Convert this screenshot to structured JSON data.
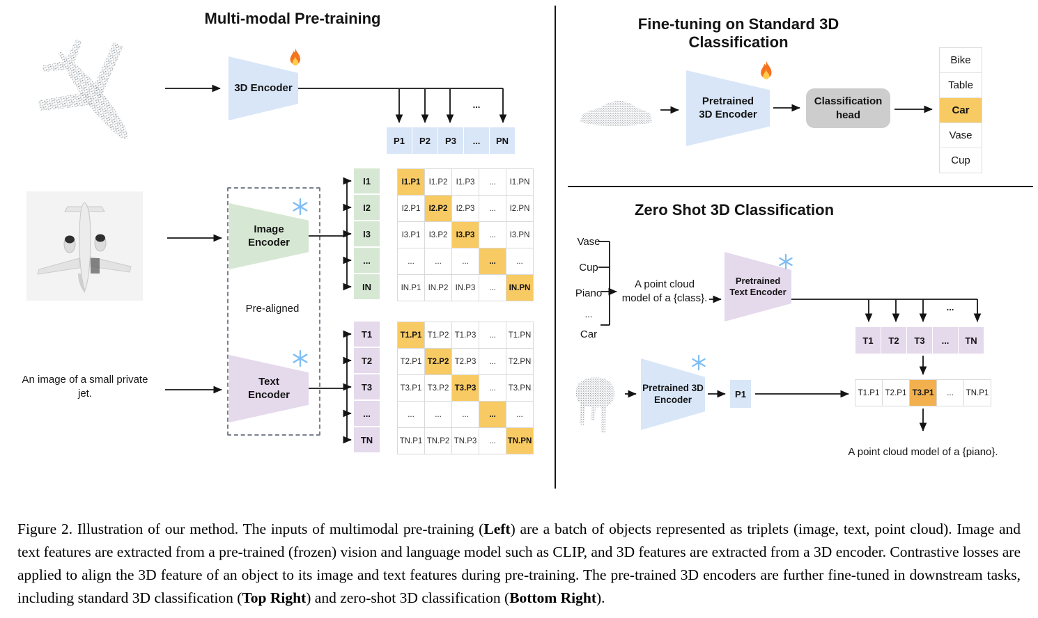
{
  "colors": {
    "blue": "#D8E6F8",
    "green": "#D6E8D3",
    "purple": "#E5D9EC",
    "yellow": "#F8CA63",
    "orange": "#F2B14E",
    "head": "#CDCDCD",
    "grid": "#D9D9D9"
  },
  "icons": {
    "trainable": "flame-icon",
    "frozen": "snowflake-icon"
  },
  "pretrain": {
    "title": "Multi-modal Pre-training",
    "encoder3d_label": "3D Encoder",
    "image_encoder_label": "Image Encoder",
    "text_encoder_label": "Text Encoder",
    "prealigned_label": "Pre-aligned",
    "input_text": "An image of a small private jet.",
    "p_dots": "...",
    "p_row": [
      "P1",
      "P2",
      "P3",
      "...",
      "PN"
    ],
    "i_labels": [
      "I1",
      "I2",
      "I3",
      "...",
      "IN"
    ],
    "t_labels": [
      "T1",
      "T2",
      "T3",
      "...",
      "TN"
    ],
    "i_matrix": [
      [
        "I1.P1",
        "I1.P2",
        "I1.P3",
        "...",
        "I1.PN"
      ],
      [
        "I2.P1",
        "I2.P2",
        "I2.P3",
        "...",
        "I2.PN"
      ],
      [
        "I3.P1",
        "I3.P2",
        "I3.P3",
        "...",
        "I3.PN"
      ],
      [
        "...",
        "...",
        "...",
        "...",
        "..."
      ],
      [
        "IN.P1",
        "IN.P2",
        "IN.P3",
        "...",
        "IN.PN"
      ]
    ],
    "t_matrix": [
      [
        "T1.P1",
        "T1.P2",
        "T1.P3",
        "...",
        "T1.PN"
      ],
      [
        "T2.P1",
        "T2.P2",
        "T2.P3",
        "...",
        "T2.PN"
      ],
      [
        "T3.P1",
        "T3.P2",
        "T3.P3",
        "...",
        "T3.PN"
      ],
      [
        "...",
        "...",
        "...",
        "...",
        "..."
      ],
      [
        "TN.P1",
        "TN.P2",
        "TN.P3",
        "...",
        "TN.PN"
      ]
    ]
  },
  "finetune": {
    "title": "Fine-tuning on Standard 3D Classification",
    "encoder_label": "Pretrained 3D Encoder",
    "head_label": "Classification head",
    "classes": [
      "Bike",
      "Table",
      "Car",
      "Vase",
      "Cup"
    ],
    "highlighted_class": "Car"
  },
  "zeroshot": {
    "title": "Zero Shot 3D Classification",
    "class_words": [
      "Vase",
      "Cup",
      "Piano",
      "...",
      "Car"
    ],
    "prompt_text": "A point cloud model of a {class}.",
    "text_encoder_label": "Pretrained Text Encoder",
    "encoder3d_label": "Pretrained 3D Encoder",
    "t_dots": "...",
    "t_row": [
      "T1",
      "T2",
      "T3",
      "...",
      "TN"
    ],
    "p_cell": "P1",
    "tp_row": [
      "T1.P1",
      "T2.P1",
      "T3.P1",
      "...",
      "TN.P1"
    ],
    "highlighted_score": "T3.P1",
    "result_text": "A point cloud model of a {piano}."
  },
  "caption": {
    "segments": [
      {
        "text": "Figure 2. Illustration of our method. The inputs of multimodal pre-training (",
        "bold": false
      },
      {
        "text": "Left",
        "bold": true
      },
      {
        "text": ") are a batch of objects represented as triplets (image, text, point cloud). Image and text features are extracted from a pre-trained (frozen) vision and language model such as CLIP, and 3D features are extracted from a 3D encoder. Contrastive losses are applied to align the 3D feature of an object to its image and text features during pre-training. The pre-trained 3D encoders are further fine-tuned in downstream tasks, including standard 3D classification (",
        "bold": false
      },
      {
        "text": "Top Right",
        "bold": true
      },
      {
        "text": ") and zero-shot 3D classification (",
        "bold": false
      },
      {
        "text": "Bottom Right",
        "bold": true
      },
      {
        "text": ").",
        "bold": false
      }
    ]
  }
}
